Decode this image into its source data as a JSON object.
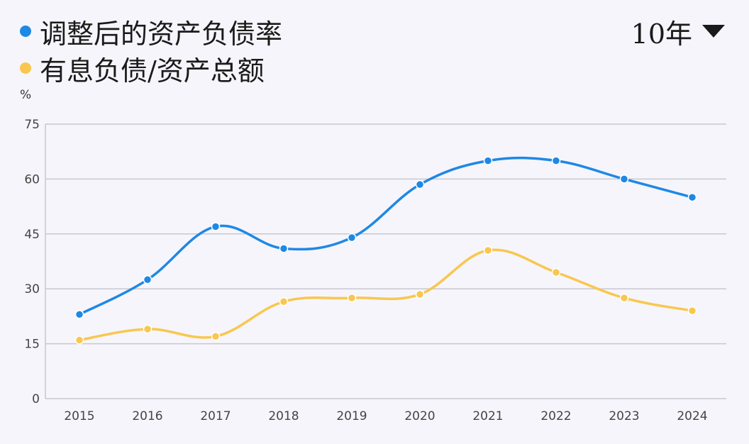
{
  "legend": [
    {
      "label": "调整后的资产负债率",
      "color": "#1e88e5"
    },
    {
      "label": "有息负债/资产总额",
      "color": "#f9c74f"
    }
  ],
  "range_select": {
    "value": "10年"
  },
  "unit": "%",
  "chart_data": {
    "type": "line",
    "title": "",
    "xlabel": "",
    "ylabel": "%",
    "ylim": [
      0,
      75
    ],
    "yticks": [
      0,
      15,
      30,
      45,
      60,
      75
    ],
    "categories": [
      "2015",
      "2016",
      "2017",
      "2018",
      "2019",
      "2020",
      "2021",
      "2022",
      "2023",
      "2024"
    ],
    "grid": true,
    "legend_position": "top-left",
    "series": [
      {
        "name": "调整后的资产负债率",
        "color": "#1e88e5",
        "values": [
          23,
          32.5,
          47,
          41,
          44,
          58.5,
          65,
          65,
          60,
          55
        ]
      },
      {
        "name": "有息负债/资产总额",
        "color": "#f9c74f",
        "values": [
          16,
          19,
          17,
          26.5,
          27.5,
          28.5,
          40.5,
          34.5,
          27.5,
          24
        ]
      }
    ]
  }
}
